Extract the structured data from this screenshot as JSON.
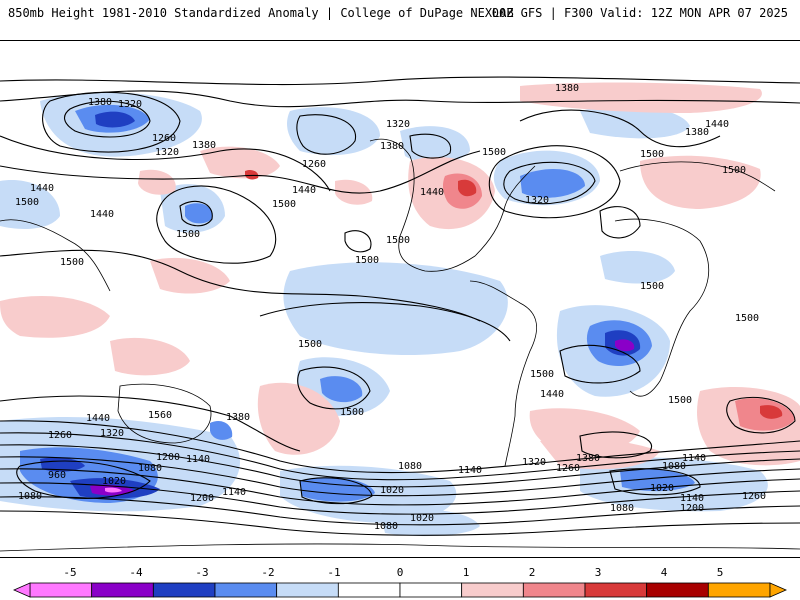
{
  "header": {
    "left_title": "850mb Height 1981-2010 Standardized Anomaly | College of DuPage NEXLAB",
    "right_title": "00Z GFS | F300 Valid: 12Z MON APR 07 2025"
  },
  "map": {
    "contour_labels": [
      "1380",
      "1320",
      "1260",
      "1320",
      "1380",
      "1440",
      "1500",
      "1440",
      "1500",
      "1500",
      "1500",
      "1320",
      "1260",
      "1380",
      "1440",
      "1500",
      "1500",
      "1380",
      "1440",
      "1500",
      "1320",
      "1500",
      "1380",
      "1440",
      "1500",
      "1500",
      "1500",
      "1500",
      "1440",
      "1500",
      "1500",
      "1500",
      "1440",
      "1560",
      "1380",
      "1320",
      "1260",
      "1200",
      "1140",
      "1080",
      "1020",
      "960",
      "1080",
      "1020",
      "1200",
      "1140",
      "1080",
      "1140",
      "1080",
      "1020",
      "1320",
      "1260",
      "1380",
      "1140",
      "1080",
      "1020",
      "1140",
      "1080",
      "1200",
      "1260"
    ],
    "colors": {
      "neg5": "#ff78ff",
      "neg4": "#8a00c8",
      "neg3": "#1f3fc2",
      "neg2": "#5a8cf0",
      "neg1": "#c6dcf7",
      "pos1": "#f8cccc",
      "pos2": "#f0868c",
      "pos3": "#d83a3a",
      "pos4": "#a80000",
      "pos5": "#ffa500",
      "contour": "#000000",
      "coast": "#000000"
    }
  },
  "colorbar": {
    "ticks": [
      "-5",
      "-4",
      "-3",
      "-2",
      "-1",
      "0",
      "1",
      "2",
      "3",
      "4",
      "5"
    ],
    "segments": [
      {
        "color": "#ff78ff"
      },
      {
        "color": "#8a00c8"
      },
      {
        "color": "#1f3fc2"
      },
      {
        "color": "#5a8cf0"
      },
      {
        "color": "#c6dcf7"
      },
      {
        "color": "#ffffff"
      },
      {
        "color": "#ffffff"
      },
      {
        "color": "#f8cccc"
      },
      {
        "color": "#f0868c"
      },
      {
        "color": "#d83a3a"
      },
      {
        "color": "#a80000"
      },
      {
        "color": "#ffa500"
      }
    ]
  }
}
